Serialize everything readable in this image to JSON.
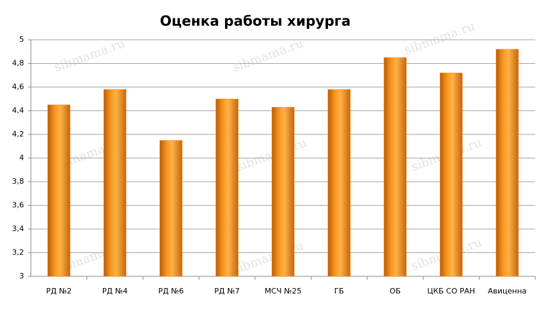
{
  "chart_data": {
    "type": "bar",
    "title": "Оценка работы хирурга",
    "categories": [
      "РД №2",
      "РД №4",
      "РД №6",
      "РД №7",
      "МСЧ №25",
      "ГБ",
      "ОБ",
      "ЦКБ СО РАН",
      "Авиценна"
    ],
    "values": [
      4.45,
      4.58,
      4.15,
      4.5,
      4.43,
      4.58,
      4.85,
      4.72,
      4.92
    ],
    "color": "#f7941d",
    "ylim": [
      3,
      5
    ],
    "yticks": [
      3,
      {
        "value": 3.2,
        "label": "3,2"
      },
      {
        "value": 3.4,
        "label": "3,4"
      },
      {
        "value": 3.6,
        "label": "3,6"
      },
      {
        "value": 3.8,
        "label": "3,8"
      },
      4,
      {
        "value": 4.2,
        "label": "4,2"
      },
      {
        "value": 4.4,
        "label": "4,4"
      },
      {
        "value": 4.6,
        "label": "4,6"
      },
      {
        "value": 4.8,
        "label": "4,8"
      },
      5
    ],
    "grid": true
  },
  "watermark": "sibmama.ru"
}
